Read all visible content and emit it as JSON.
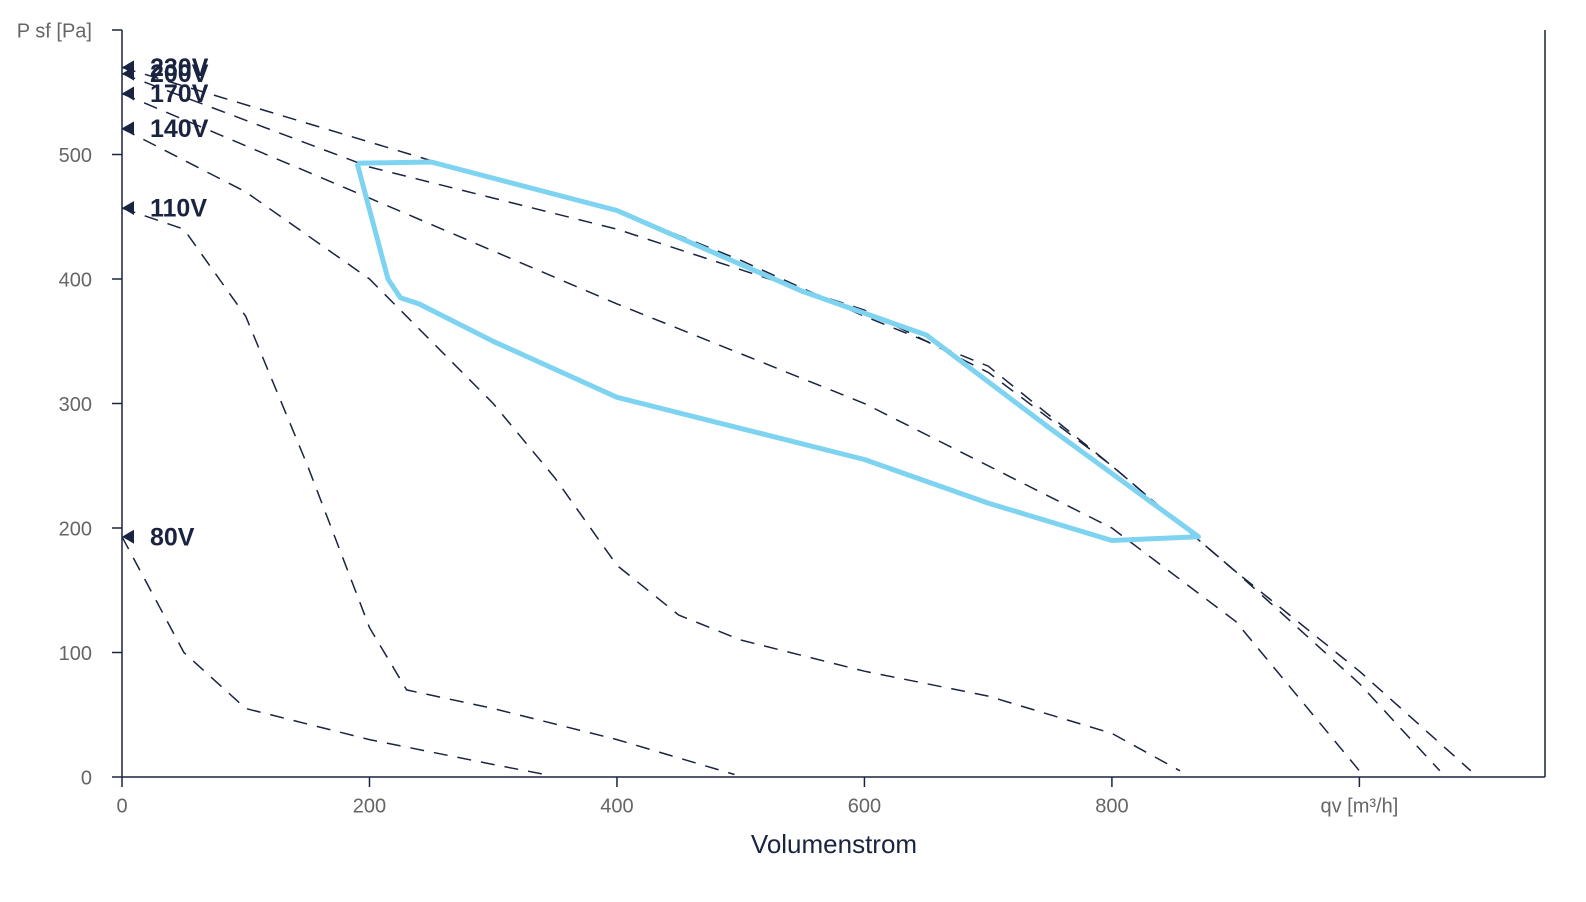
{
  "chart_data": {
    "type": "line",
    "xlabel": "Volumenstrom",
    "xlim": [
      0,
      1150
    ],
    "ylim": [
      0,
      600
    ],
    "xticks": [
      0,
      200,
      400,
      600,
      800,
      {
        "value": 1000,
        "label": "qv [m³/h]"
      }
    ],
    "yticks": [
      0,
      100,
      200,
      300,
      400,
      500,
      {
        "value": 600,
        "label": "P sf [Pa]"
      }
    ],
    "series": [
      {
        "name": "230V",
        "color": "#1a2440",
        "dashed": true,
        "x": [
          0,
          250,
          400,
          500,
          600,
          700,
          800,
          900,
          1000,
          1090
        ],
        "values": [
          570,
          495,
          455,
          415,
          370,
          330,
          250,
          165,
          85,
          5
        ]
      },
      {
        "name": "200V",
        "color": "#1a2440",
        "dashed": true,
        "x": [
          0,
          200,
          400,
          600,
          700,
          800,
          900,
          1000,
          1065
        ],
        "values": [
          565,
          490,
          440,
          375,
          325,
          250,
          165,
          75,
          5
        ]
      },
      {
        "name": "170V",
        "color": "#1a2440",
        "dashed": true,
        "x": [
          0,
          200,
          400,
          600,
          800,
          900,
          1000
        ],
        "values": [
          549,
          465,
          380,
          300,
          200,
          125,
          5
        ]
      },
      {
        "name": "140V",
        "color": "#1a2440",
        "dashed": true,
        "x": [
          0,
          100,
          200,
          300,
          350,
          400,
          450,
          500,
          600,
          700,
          800,
          855
        ],
        "values": [
          521,
          470,
          400,
          300,
          240,
          170,
          130,
          110,
          85,
          65,
          35,
          5
        ]
      },
      {
        "name": "110V",
        "color": "#1a2440",
        "dashed": true,
        "x": [
          0,
          50,
          100,
          150,
          200,
          230,
          300,
          400,
          495
        ],
        "values": [
          457,
          440,
          370,
          250,
          120,
          70,
          55,
          30,
          2
        ]
      },
      {
        "name": "80V",
        "color": "#1a2440",
        "dashed": true,
        "x": [
          0,
          50,
          100,
          200,
          300,
          342
        ],
        "values": [
          193,
          100,
          55,
          30,
          10,
          2
        ]
      }
    ],
    "area": {
      "color": "#7dd3f0",
      "x": [
        190,
        250,
        400,
        550,
        650,
        750,
        870,
        800,
        700,
        600,
        500,
        400,
        300,
        240,
        225,
        215,
        190
      ],
      "values": [
        493,
        494,
        455,
        390,
        355,
        280,
        193,
        190,
        220,
        255,
        280,
        305,
        350,
        380,
        385,
        400,
        493
      ]
    }
  }
}
